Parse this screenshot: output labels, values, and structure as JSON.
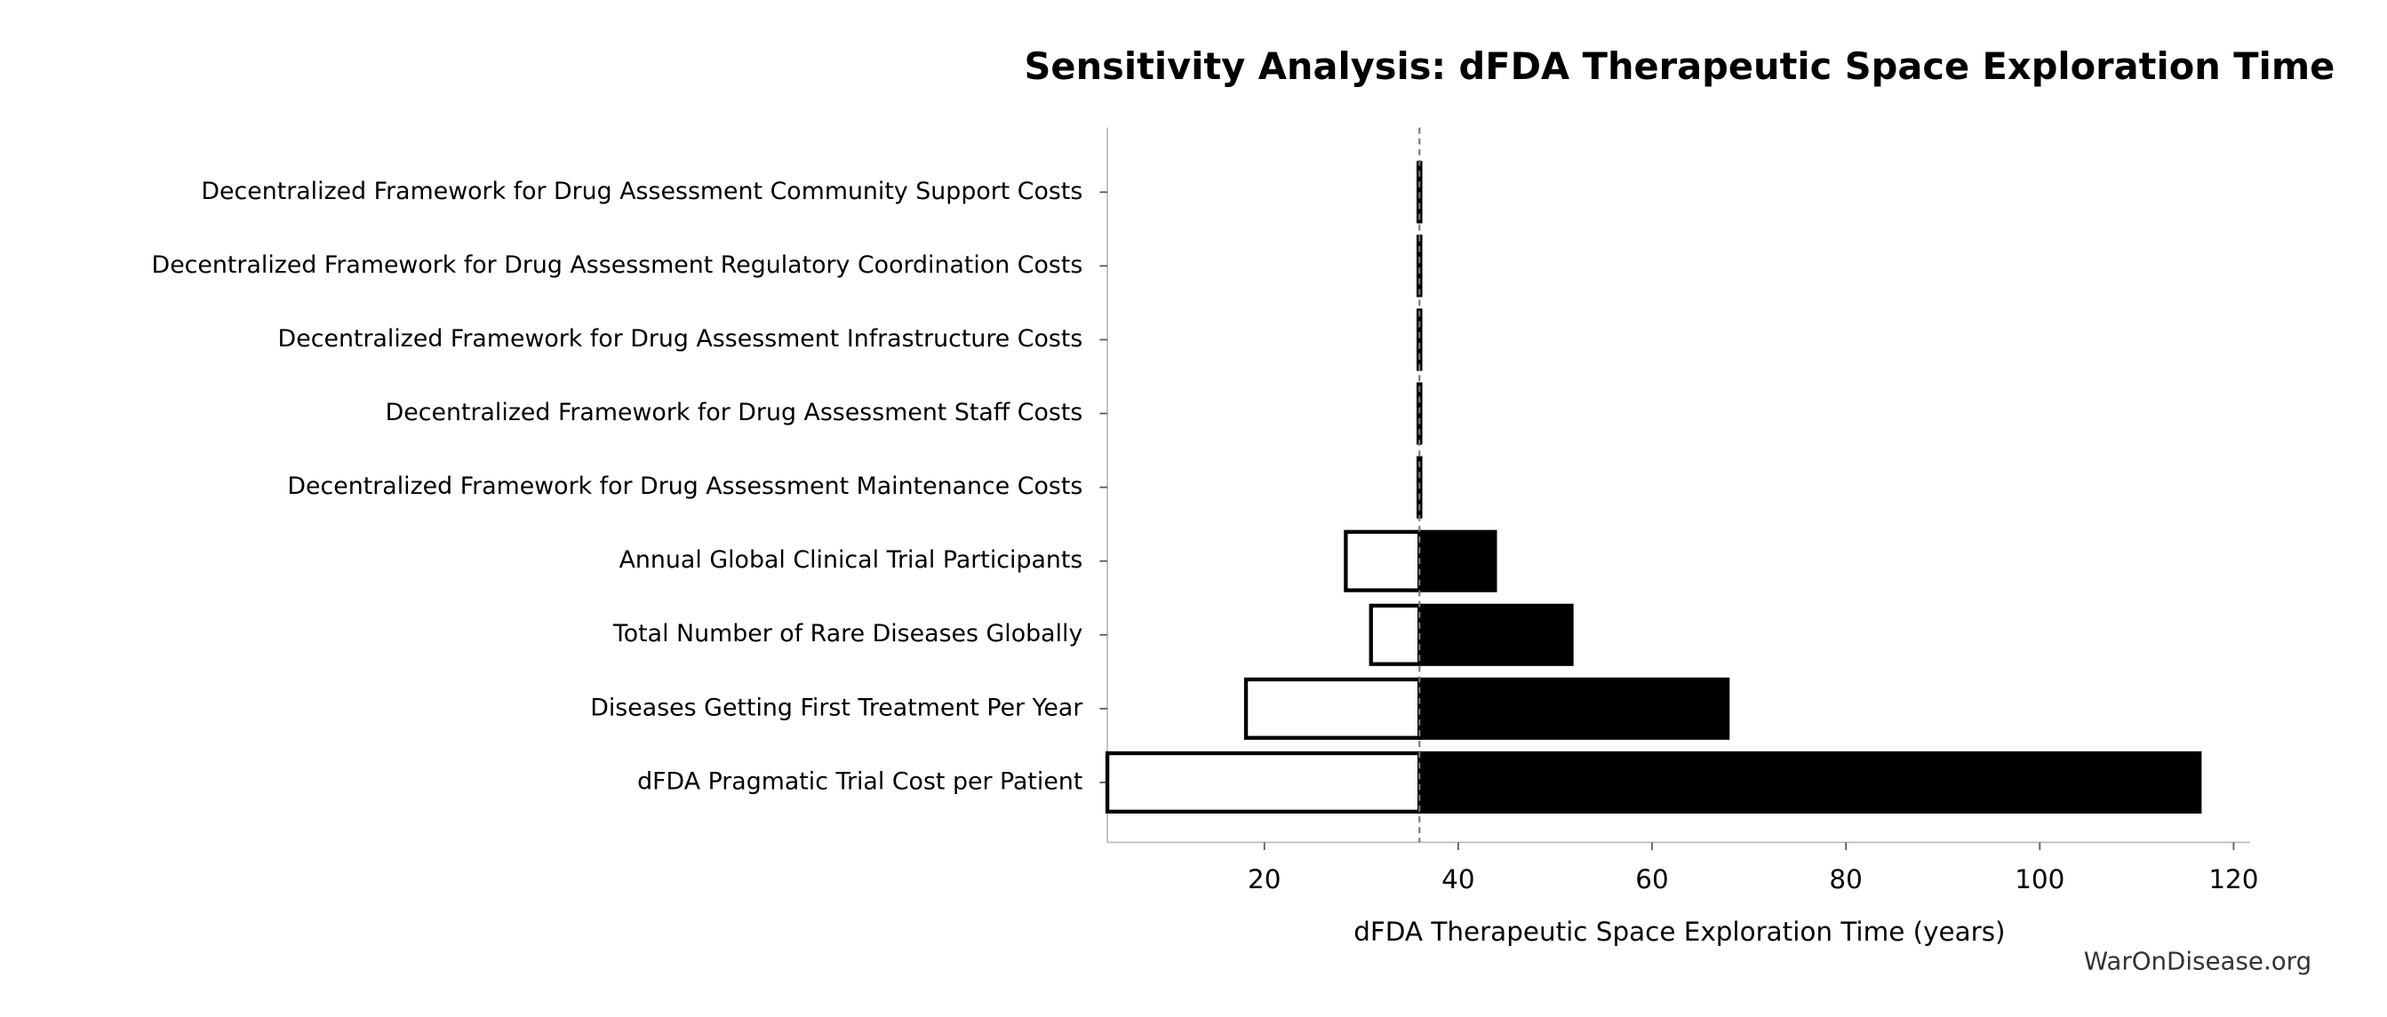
{
  "chart_data": {
    "type": "tornado",
    "title": "Sensitivity Analysis: dFDA Therapeutic Space Exploration Time",
    "x_label": "dFDA Therapeutic Space Exploration Time (years)",
    "watermark": "WarOnDisease.org",
    "categories": [
      "Decentralized Framework for Drug Assessment Community Support Costs",
      "Decentralized Framework for Drug Assessment Regulatory Coordination Costs",
      "Decentralized Framework for Drug Assessment Infrastructure Costs",
      "Decentralized Framework for Drug Assessment Staff Costs",
      "Decentralized Framework for Drug Assessment Maintenance Costs",
      "Annual Global Clinical Trial Participants",
      "Total Number of Rare Diseases Globally",
      "Diseases Getting First Treatment Per Year",
      "dFDA Pragmatic Trial Cost per Patient"
    ],
    "baseline": 36,
    "series": [
      {
        "color": "#ffffff",
        "values": [
          35.9,
          35.9,
          35.9,
          35.9,
          35.9,
          28.4,
          31.0,
          18.1,
          3.8
        ]
      },
      {
        "color": "#000000",
        "values": [
          36.1,
          36.1,
          36.1,
          36.1,
          36.1,
          43.8,
          51.7,
          67.8,
          116.5
        ]
      }
    ],
    "xlim": [
      3.8,
      121.7
    ],
    "xticks": [
      20,
      40,
      60,
      80,
      100,
      120
    ]
  }
}
